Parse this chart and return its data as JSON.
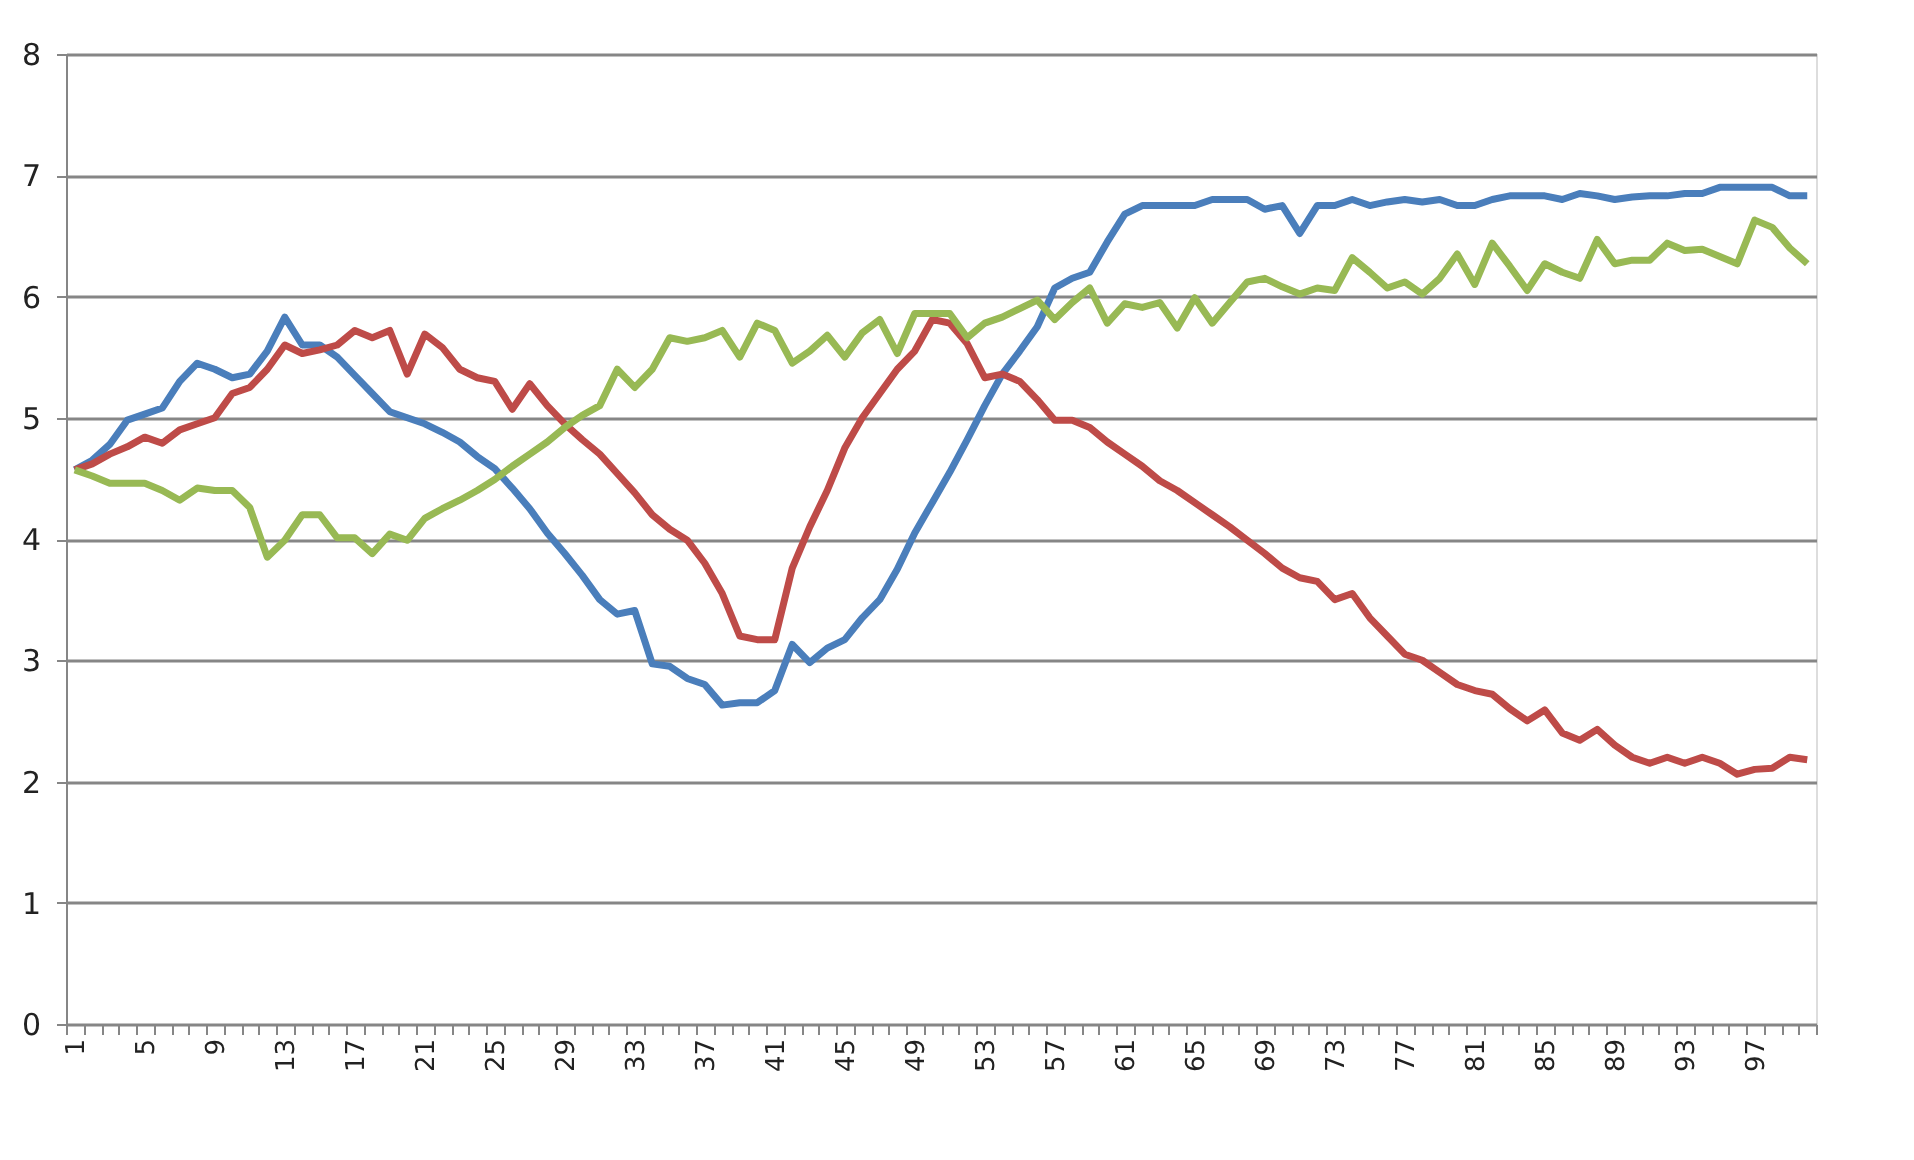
{
  "chart_data": {
    "type": "line",
    "categories": [
      "1",
      null,
      null,
      null,
      "5",
      null,
      null,
      null,
      "9",
      null,
      null,
      null,
      "13",
      null,
      null,
      null,
      "17",
      null,
      null,
      null,
      "21",
      null,
      null,
      null,
      "25",
      null,
      null,
      null,
      "29",
      null,
      null,
      null,
      "33",
      null,
      null,
      null,
      "37",
      null,
      null,
      null,
      "41",
      null,
      null,
      null,
      "45",
      null,
      null,
      null,
      "49",
      null,
      null,
      null,
      "53",
      null,
      null,
      null,
      "57",
      null,
      null,
      null,
      "61",
      null,
      null,
      null,
      "65",
      null,
      null,
      null,
      "69",
      null,
      null,
      null,
      "73",
      null,
      null,
      null,
      "77",
      null,
      null,
      null,
      "81",
      null,
      null,
      null,
      "85",
      null,
      null,
      null,
      "89",
      null,
      null,
      null,
      "93",
      null,
      null,
      null,
      "97",
      null,
      null,
      null
    ],
    "series": [
      {
        "color": "#4a7ebb",
        "values": [
          4.57,
          4.65,
          4.78,
          4.98,
          5.03,
          5.08,
          5.3,
          5.45,
          5.4,
          5.33,
          5.36,
          5.55,
          5.83,
          5.6,
          5.6,
          5.5,
          5.35,
          5.2,
          5.05,
          5.0,
          4.95,
          4.88,
          4.8,
          4.68,
          4.58,
          4.42,
          4.25,
          4.05,
          3.88,
          3.7,
          3.5,
          3.38,
          3.41,
          2.97,
          2.95,
          2.85,
          2.8,
          2.63,
          2.65,
          2.65,
          2.75,
          3.13,
          2.98,
          3.1,
          3.17,
          3.35,
          3.5,
          3.75,
          4.05,
          4.3,
          4.55,
          4.82,
          5.1,
          5.36,
          5.55,
          5.75,
          6.07,
          6.15,
          6.2,
          6.45,
          6.68,
          6.75,
          6.75,
          6.75,
          6.75,
          6.8,
          6.8,
          6.8,
          6.72,
          6.75,
          6.52,
          6.75,
          6.75,
          6.8,
          6.75,
          6.78,
          6.8,
          6.78,
          6.8,
          6.75,
          6.75,
          6.8,
          6.83,
          6.83,
          6.83,
          6.8,
          6.85,
          6.83,
          6.8,
          6.82,
          6.83,
          6.83,
          6.85,
          6.85,
          6.9,
          6.9,
          6.9,
          6.9,
          6.83,
          6.83
        ]
      },
      {
        "color": "#be4b48",
        "values": [
          4.57,
          4.62,
          4.7,
          4.76,
          4.84,
          4.79,
          4.9,
          4.95,
          5.0,
          5.2,
          5.25,
          5.4,
          5.6,
          5.53,
          5.56,
          5.6,
          5.72,
          5.66,
          5.72,
          5.36,
          5.69,
          5.58,
          5.4,
          5.33,
          5.3,
          5.07,
          5.28,
          5.1,
          4.95,
          4.82,
          4.7,
          4.54,
          4.38,
          4.2,
          4.08,
          3.99,
          3.8,
          3.55,
          3.2,
          3.17,
          3.17,
          3.76,
          4.1,
          4.4,
          4.75,
          5.0,
          5.2,
          5.4,
          5.55,
          5.81,
          5.78,
          5.61,
          5.33,
          5.36,
          5.3,
          5.15,
          4.98,
          4.98,
          4.92,
          4.8,
          4.7,
          4.6,
          4.48,
          4.4,
          4.3,
          4.2,
          4.1,
          3.99,
          3.88,
          3.76,
          3.68,
          3.65,
          3.5,
          3.55,
          3.35,
          3.2,
          3.05,
          3.0,
          2.9,
          2.8,
          2.75,
          2.72,
          2.6,
          2.5,
          2.59,
          2.4,
          2.34,
          2.43,
          2.3,
          2.2,
          2.15,
          2.2,
          2.15,
          2.2,
          2.15,
          2.06,
          2.1,
          2.11,
          2.2,
          2.18
        ]
      },
      {
        "color": "#98b954",
        "values": [
          4.57,
          4.52,
          4.46,
          4.46,
          4.46,
          4.4,
          4.32,
          4.42,
          4.4,
          4.4,
          4.26,
          3.85,
          3.99,
          4.2,
          4.2,
          4.01,
          4.01,
          3.88,
          4.04,
          3.99,
          4.17,
          4.25,
          4.32,
          4.4,
          4.49,
          4.6,
          4.7,
          4.8,
          4.92,
          5.02,
          5.1,
          5.4,
          5.25,
          5.4,
          5.66,
          5.63,
          5.66,
          5.72,
          5.5,
          5.78,
          5.72,
          5.45,
          5.55,
          5.68,
          5.5,
          5.7,
          5.81,
          5.53,
          5.86,
          5.86,
          5.86,
          5.66,
          5.78,
          5.83,
          5.9,
          5.97,
          5.81,
          5.95,
          6.07,
          5.78,
          5.94,
          5.91,
          5.95,
          5.74,
          5.99,
          5.78,
          5.95,
          6.12,
          6.15,
          6.08,
          6.02,
          6.07,
          6.05,
          6.32,
          6.2,
          6.07,
          6.12,
          6.02,
          6.15,
          6.35,
          6.1,
          6.44,
          6.25,
          6.05,
          6.27,
          6.2,
          6.15,
          6.47,
          6.27,
          6.3,
          6.3,
          6.44,
          6.38,
          6.39,
          6.33,
          6.27,
          6.63,
          6.57,
          6.4,
          6.27
        ]
      }
    ],
    "ylim": [
      0,
      8
    ],
    "yticks": [
      0,
      1,
      2,
      3,
      4,
      5,
      6,
      7,
      8
    ],
    "grid": "y",
    "legend": false,
    "marker": "none",
    "line_style": "solid"
  }
}
